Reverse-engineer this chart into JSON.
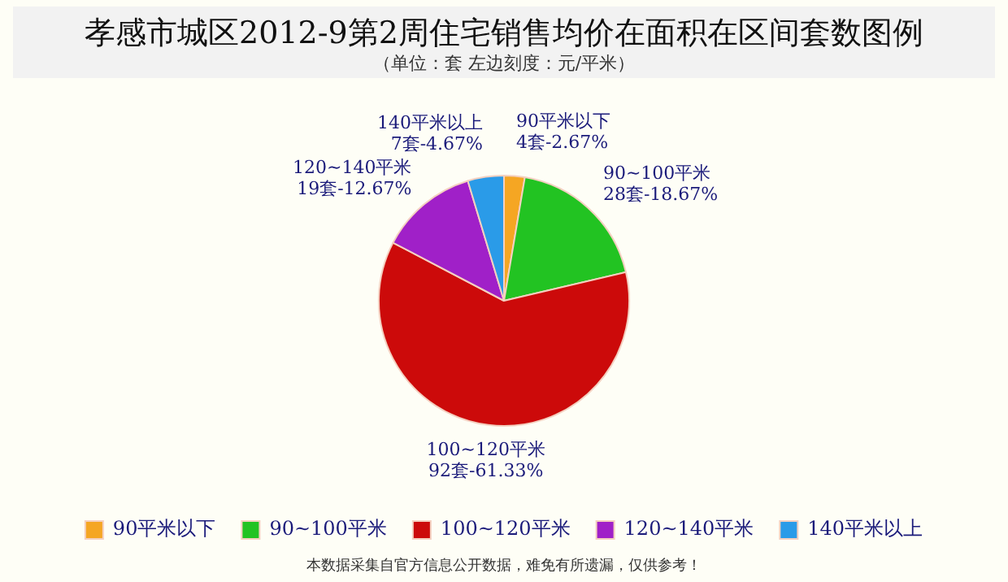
{
  "chart_data": {
    "type": "pie",
    "title": "孝感市城区2012-9第2周住宅销售均价在面积在区间套数图例",
    "subtitle": "（单位：套 左边刻度：元/平米）",
    "categories": [
      "90平米以下",
      "90~100平米",
      "100~120平米",
      "120~140平米",
      "140平米以上"
    ],
    "values": [
      4,
      28,
      92,
      19,
      7
    ],
    "colors": [
      "#f5a623",
      "#22c322",
      "#cc0a0a",
      "#a020c8",
      "#2a9be8"
    ],
    "value_labels": [
      "4套-2.67%",
      "28套-18.67%",
      "92套-61.33%",
      "19套-12.67%",
      "7套-4.67%"
    ],
    "legend": "bottom",
    "annotations": [
      "本数据采集自官方信息公开数据，难免有所遗漏，仅供参考！"
    ]
  }
}
